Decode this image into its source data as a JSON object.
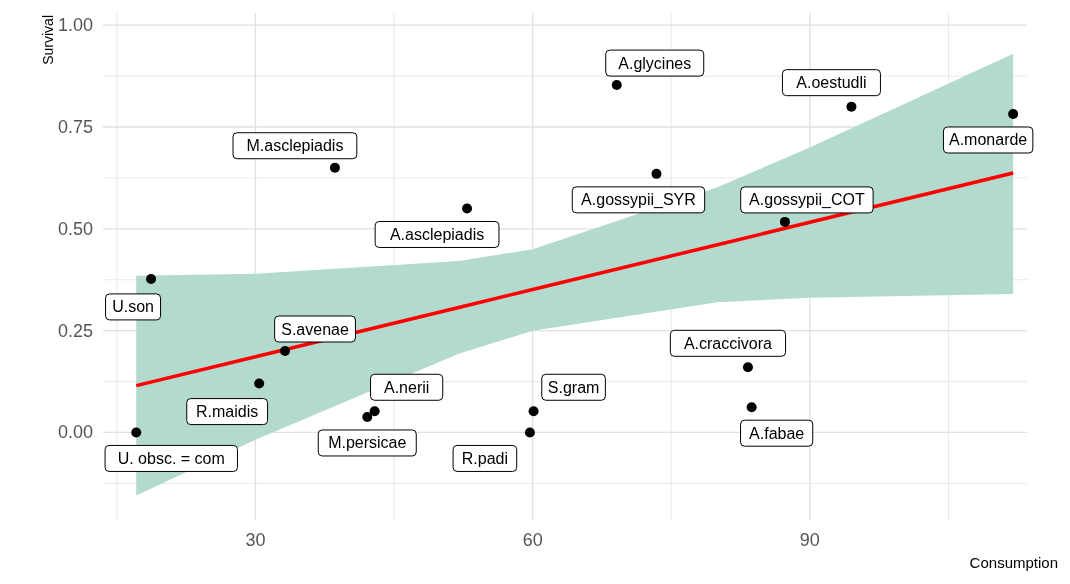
{
  "chart_data": {
    "type": "scatter",
    "xlabel": "Consumption",
    "ylabel": "Survival",
    "xlim": [
      13.5,
      113.5
    ],
    "ylim": [
      -0.215,
      1.03
    ],
    "xticks": [
      {
        "value": 15,
        "label": null
      },
      30,
      {
        "value": 45,
        "label": null
      },
      60,
      {
        "value": 75,
        "label": null
      },
      90,
      {
        "value": 105,
        "label": null
      }
    ],
    "yticks": [
      {
        "value": -0.125,
        "label": null
      },
      {
        "value": 0,
        "label": "0.00"
      },
      {
        "value": 0.125,
        "label": null
      },
      {
        "value": 0.25,
        "label": "0.25"
      },
      {
        "value": 0.375,
        "label": null
      },
      {
        "value": 0.5,
        "label": "0.50"
      },
      {
        "value": 0.625,
        "label": null
      },
      {
        "value": 0.75,
        "label": "0.75"
      },
      {
        "value": 0.875,
        "label": null
      },
      {
        "value": 1,
        "label": "1.00"
      }
    ],
    "grid": true,
    "series": [
      {
        "type": "line",
        "color": "#ff0000",
        "x": [
          17.1,
          30,
          52,
          60,
          80,
          90,
          112
        ],
        "values": [
          0.115,
          0.186,
          0.307,
          0.351,
          0.461,
          0.516,
          0.637
        ],
        "lower": [
          -0.155,
          -0.018,
          0.193,
          0.25,
          0.32,
          0.331,
          0.34
        ],
        "upper": [
          0.385,
          0.39,
          0.421,
          0.45,
          0.602,
          0.7,
          0.93
        ]
      },
      {
        "color": "#000000",
        "marker": "circle",
        "x": [
          17.1,
          18.7,
          30.4,
          33.2,
          38.6,
          42.1,
          42.9,
          52.9,
          59.7,
          60.1,
          69.1,
          73.4,
          83.3,
          83.7,
          87.3,
          94.5,
          112
        ],
        "values": [
          0,
          0.377,
          0.12,
          0.2,
          0.65,
          0.038,
          0.052,
          0.55,
          0,
          0.052,
          0.853,
          0.635,
          0.16,
          0.062,
          0.517,
          0.8,
          0.782
        ]
      }
    ],
    "annotations": [
      {
        "text": "U. obsc. = com",
        "x": 17.1,
        "y": 0
      },
      {
        "text": "U.son",
        "x": 18.7,
        "y": 0.377
      },
      {
        "text": "R.maidis",
        "x": 30.4,
        "y": 0.12
      },
      {
        "text": "S.avenae",
        "x": 33.2,
        "y": 0.2
      },
      {
        "text": "M.asclepiadis",
        "x": 38.6,
        "y": 0.65
      },
      {
        "text": "M.persicae",
        "x": 42.1,
        "y": 0.038
      },
      {
        "text": "A.nerii",
        "x": 42.9,
        "y": 0.052
      },
      {
        "text": "A.asclepiadis",
        "x": 52.9,
        "y": 0.55
      },
      {
        "text": "R.padi",
        "x": 59.7,
        "y": 0
      },
      {
        "text": "S.gram",
        "x": 60.1,
        "y": 0.052
      },
      {
        "text": "A.glycines",
        "x": 69.1,
        "y": 0.853
      },
      {
        "text": "A.gossypii_SYR",
        "x": 73.4,
        "y": 0.635
      },
      {
        "text": "A.craccivora",
        "x": 83.3,
        "y": 0.16
      },
      {
        "text": "A.fabae",
        "x": 83.7,
        "y": 0.062
      },
      {
        "text": "A.gossypii_COT",
        "x": 87.3,
        "y": 0.517
      },
      {
        "text": "A.oestudli",
        "x": 94.5,
        "y": 0.8
      },
      {
        "text": "A.monarde",
        "x": 112,
        "y": 0.782
      }
    ]
  }
}
